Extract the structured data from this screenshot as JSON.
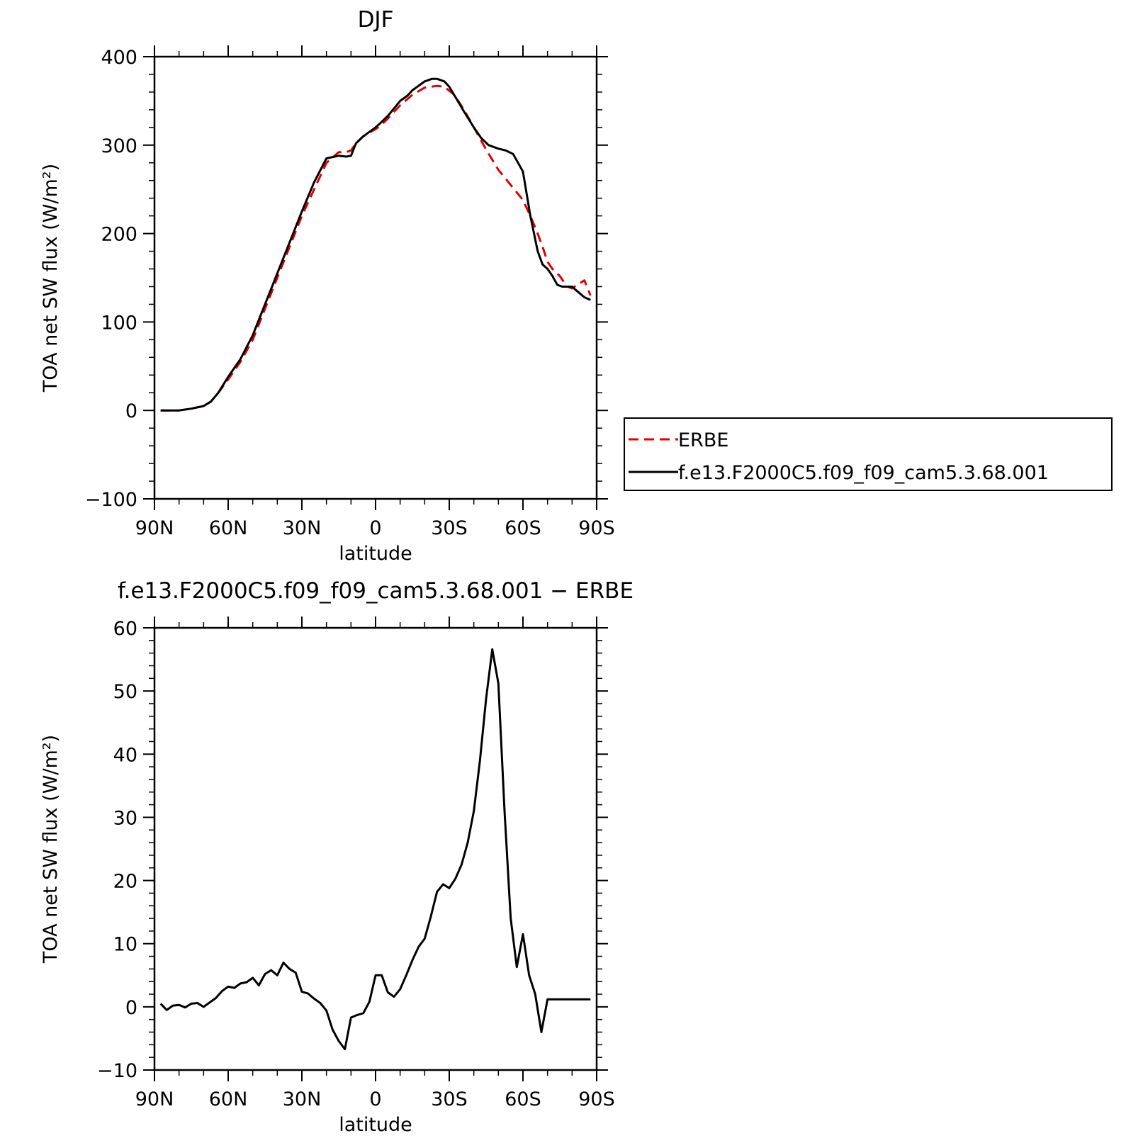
{
  "chart_data": [
    {
      "type": "line",
      "title": "DJF",
      "xlabel": "latitude",
      "ylabel": "TOA net SW flux (W/m²)",
      "xlim": [
        90,
        -90
      ],
      "ylim": [
        -100,
        400
      ],
      "xticks": [
        90,
        60,
        30,
        0,
        -30,
        -60,
        -90
      ],
      "xtick_labels": [
        "90N",
        "60N",
        "30N",
        "0",
        "30S",
        "60S",
        "90S"
      ],
      "yticks": [
        -100,
        0,
        100,
        200,
        300,
        400
      ],
      "ytick_labels": [
        "−100",
        "0",
        "100",
        "200",
        "300",
        "400"
      ],
      "legend": {
        "placement": "right",
        "entries": [
          "ERBE",
          "f.e13.F2000C5.f09_f09_cam5.3.68.001"
        ]
      },
      "series": [
        {
          "name": "ERBE",
          "color": "#e00000",
          "dash": "dashed",
          "x": [
            87.5,
            85,
            80,
            75,
            70,
            67,
            64,
            60,
            55,
            50,
            45,
            40,
            35,
            30,
            25,
            20,
            15,
            12,
            10,
            8,
            5,
            2,
            0,
            -2,
            -5,
            -10,
            -15,
            -20,
            -25,
            -28,
            -32,
            -36,
            -40,
            -45,
            -50,
            -55,
            -60,
            -63,
            -66,
            -68,
            -70,
            -72,
            -75,
            -78,
            -80,
            -82,
            -85,
            -87.5
          ],
          "y": [
            0,
            0,
            0,
            2,
            5,
            10,
            20,
            35,
            55,
            80,
            115,
            150,
            185,
            220,
            250,
            280,
            292,
            292,
            294,
            302,
            310,
            315,
            318,
            322,
            330,
            345,
            357,
            365,
            367,
            366,
            357,
            340,
            320,
            295,
            272,
            255,
            238,
            220,
            200,
            185,
            168,
            160,
            152,
            140,
            138,
            142,
            147,
            130
          ]
        },
        {
          "name": "f.e13.F2000C5.f09_f09_cam5.3.68.001",
          "color": "#000000",
          "dash": "solid",
          "x": [
            87.5,
            85,
            80,
            75,
            70,
            67,
            64,
            60,
            55,
            50,
            45,
            40,
            35,
            30,
            25,
            20,
            15,
            12,
            10,
            8,
            5,
            2,
            0,
            -2,
            -5,
            -8,
            -10,
            -13,
            -15,
            -18,
            -20,
            -23,
            -25,
            -28,
            -30,
            -33,
            -36,
            -40,
            -43,
            -46,
            -50,
            -53,
            -56,
            -60,
            -63,
            -66,
            -68,
            -70,
            -72,
            -74,
            -76,
            -78,
            -80,
            -82,
            -85,
            -87.5
          ],
          "y": [
            0,
            0,
            0,
            2,
            5,
            10,
            20,
            38,
            58,
            85,
            120,
            155,
            190,
            225,
            258,
            285,
            288,
            287,
            288,
            302,
            310,
            316,
            320,
            325,
            333,
            343,
            350,
            356,
            362,
            368,
            372,
            375,
            375,
            372,
            366,
            352,
            338,
            320,
            308,
            300,
            296,
            294,
            290,
            270,
            220,
            180,
            165,
            160,
            152,
            142,
            140,
            140,
            140,
            135,
            128,
            125
          ]
        }
      ]
    },
    {
      "type": "line",
      "title": "f.e13.F2000C5.f09_f09_cam5.3.68.001 − ERBE",
      "xlabel": "latitude",
      "ylabel": "TOA net SW flux (W/m²)",
      "xlim": [
        90,
        -90
      ],
      "ylim": [
        -10,
        60
      ],
      "xticks": [
        90,
        60,
        30,
        0,
        -30,
        -60,
        -90
      ],
      "xtick_labels": [
        "90N",
        "60N",
        "30N",
        "0",
        "30S",
        "60S",
        "90S"
      ],
      "yticks": [
        -10,
        0,
        10,
        20,
        30,
        40,
        50,
        60
      ],
      "ytick_labels": [
        "−10",
        "0",
        "10",
        "20",
        "30",
        "40",
        "50",
        "60"
      ],
      "series": [
        {
          "color": "#000000",
          "dash": "solid",
          "x": [
            87.5,
            85,
            82.5,
            80,
            77.5,
            75,
            72.5,
            70,
            67.5,
            65,
            62.5,
            60,
            57.5,
            55,
            52.5,
            50,
            47.5,
            45,
            42.5,
            40,
            37.5,
            35,
            32.5,
            30,
            27.5,
            25,
            22.5,
            20,
            17.5,
            15,
            12.5,
            10,
            7.5,
            5,
            2.5,
            0,
            -2.5,
            -5,
            -7.5,
            -10,
            -12.5,
            -15,
            -17.5,
            -20,
            -22.5,
            -25,
            -27.5,
            -30,
            -32.5,
            -35,
            -37.5,
            -40,
            -42.5,
            -45,
            -47.5,
            -50,
            -52.5,
            -55,
            -57.5,
            -60,
            -62.5,
            -65,
            -67.5,
            -70,
            -72.5,
            -75,
            -77.5,
            -80,
            -82.5,
            -85,
            -87.5
          ],
          "y": [
            0.5,
            -0.5,
            0.2,
            0.3,
            -0.1,
            0.5,
            0.6,
            0,
            0.7,
            1.4,
            2.5,
            3.2,
            3.0,
            3.7,
            3.9,
            4.6,
            3.4,
            5.2,
            5.8,
            5.0,
            7.0,
            6.0,
            5.4,
            2.4,
            2.1,
            1.3,
            0.6,
            -0.6,
            -3.6,
            -5.4,
            -6.7,
            -1.7,
            -1.3,
            -1.0,
            0.8,
            5.0,
            5.0,
            2.3,
            1.6,
            2.8,
            5.0,
            7.4,
            9.5,
            10.8,
            14.3,
            18.2,
            19.4,
            18.8,
            20.3,
            22.5,
            26.0,
            31.0,
            39.0,
            48.8,
            56.6,
            51.2,
            31.0,
            14.0,
            6.3,
            11.5,
            5.0,
            2.0,
            -4.0,
            1.2,
            1.2,
            1.2,
            1.2,
            1.2,
            1.2,
            1.2,
            1.2
          ]
        }
      ]
    }
  ]
}
